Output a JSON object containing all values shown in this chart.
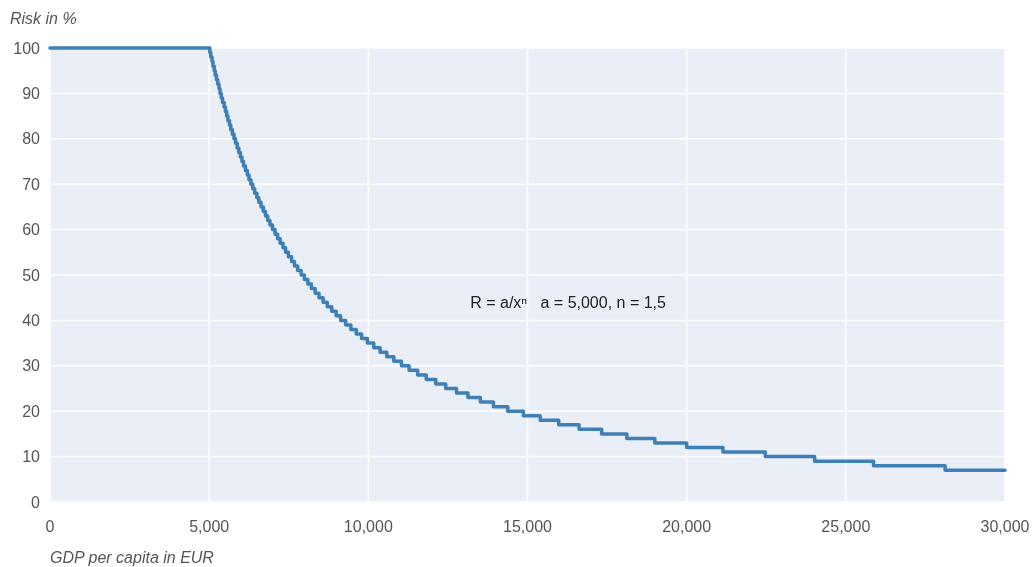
{
  "chart_data": {
    "type": "step",
    "ylabel": "Risk in %",
    "xlabel": "GDP per capita in EUR",
    "annotations": [
      "R = a/xⁿ   a = 5,000, n = 1,5"
    ],
    "series": [
      {
        "color": "#3d7fb6",
        "x": [
          0,
          5020,
          5050,
          5090,
          5120,
          5160,
          5190,
          5230,
          5270,
          5310,
          5340,
          5380,
          5420,
          5470,
          5510,
          5550,
          5590,
          5640,
          5680,
          5730,
          5780,
          5830,
          5880,
          5930,
          5980,
          6030,
          6080,
          6140,
          6200,
          6250,
          6310,
          6370,
          6430,
          6500,
          6560,
          6630,
          6700,
          6770,
          6840,
          6910,
          6990,
          7070,
          7150,
          7230,
          7320,
          7400,
          7490,
          7590,
          7680,
          7780,
          7890,
          7990,
          8100,
          8210,
          8330,
          8450,
          8580,
          8710,
          8850,
          8990,
          9130,
          9290,
          9450,
          9620,
          9790,
          9970,
          10170,
          10370,
          10580,
          10800,
          11040,
          11280,
          11550,
          11820,
          12120,
          12430,
          12770,
          13130,
          13520,
          13930,
          14380,
          14870,
          15400,
          15980,
          16620,
          17330,
          18120,
          19000,
          20000,
          21140,
          22470,
          24020,
          25870,
          28120,
          30000
        ],
        "values": [
          100,
          99,
          98,
          97,
          96,
          95,
          94,
          93,
          92,
          91,
          90,
          89,
          88,
          87,
          86,
          85,
          84,
          83,
          82,
          81,
          80,
          79,
          78,
          77,
          76,
          75,
          74,
          73,
          72,
          71,
          70,
          69,
          68,
          67,
          66,
          65,
          64,
          63,
          62,
          61,
          60,
          59,
          58,
          57,
          56,
          55,
          54,
          53,
          52,
          51,
          50,
          49,
          48,
          47,
          46,
          45,
          44,
          43,
          42,
          41,
          40,
          39,
          38,
          37,
          36,
          35,
          34,
          33,
          32,
          31,
          30,
          29,
          28,
          27,
          26,
          25,
          24,
          23,
          22,
          21,
          20,
          19,
          18,
          17,
          16,
          15,
          14,
          13,
          12,
          11,
          10,
          9,
          8,
          7,
          7
        ]
      }
    ],
    "xlim": [
      0,
      30000
    ],
    "xticks": [
      0,
      {
        "value": 5000,
        "label": "5,000"
      },
      {
        "value": 10000,
        "label": "10,000"
      },
      {
        "value": 15000,
        "label": "15,000"
      },
      {
        "value": 20000,
        "label": "20,000"
      },
      {
        "value": 25000,
        "label": "25,000"
      },
      {
        "value": 30000,
        "label": "30,000"
      }
    ],
    "ylim": [
      0,
      100
    ],
    "yticks": [
      0,
      10,
      20,
      30,
      40,
      50,
      60,
      70,
      80,
      90,
      100
    ],
    "grid": true,
    "line_style": "solid"
  }
}
